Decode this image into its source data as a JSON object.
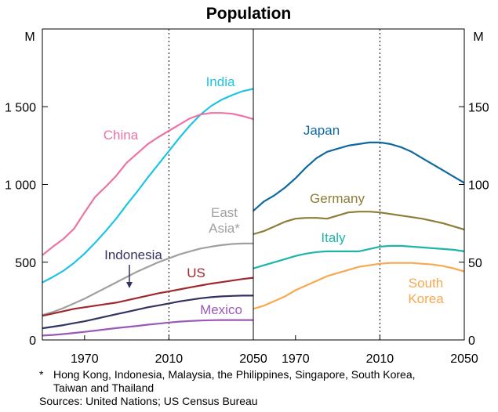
{
  "chart_data": {
    "title": "Population",
    "type": "line",
    "panels": [
      {
        "unit": "M",
        "x_ticks": [
          1970,
          2010,
          2050
        ],
        "x_range": [
          1950,
          2050
        ],
        "y_ticks": [
          "0",
          "500",
          "1 000",
          "1 500"
        ],
        "y_tick_values": [
          0,
          500,
          1000,
          1500
        ],
        "y_range": [
          0,
          2000
        ],
        "vline_at": 2010,
        "series": [
          {
            "name": "India",
            "color": "#1EC3E6",
            "x": [
              1950,
              1955,
              1960,
              1965,
              1970,
              1975,
              1980,
              1985,
              1990,
              1995,
              2000,
              2005,
              2010,
              2015,
              2020,
              2025,
              2030,
              2035,
              2040,
              2045,
              2050
            ],
            "y": [
              370,
              405,
              445,
              495,
              555,
              625,
              700,
              780,
              870,
              955,
              1045,
              1130,
              1215,
              1300,
              1380,
              1450,
              1505,
              1545,
              1575,
              1600,
              1615
            ]
          },
          {
            "name": "China",
            "color": "#EB73A5",
            "x": [
              1950,
              1955,
              1960,
              1965,
              1970,
              1975,
              1980,
              1985,
              1990,
              1995,
              2000,
              2005,
              2010,
              2015,
              2020,
              2025,
              2030,
              2035,
              2040,
              2045,
              2050
            ],
            "y": [
              545,
              600,
              650,
              715,
              820,
              920,
              985,
              1055,
              1140,
              1200,
              1260,
              1305,
              1345,
              1385,
              1425,
              1450,
              1460,
              1460,
              1455,
              1440,
              1420
            ]
          },
          {
            "name": "East Asia*",
            "label_lines": [
              "East",
              "Asia*"
            ],
            "color": "#A0A0A0",
            "x": [
              1950,
              1955,
              1960,
              1965,
              1970,
              1975,
              1980,
              1985,
              1990,
              1995,
              2000,
              2005,
              2010,
              2015,
              2020,
              2025,
              2030,
              2035,
              2040,
              2045,
              2050
            ],
            "y": [
              160,
              180,
              205,
              235,
              265,
              300,
              335,
              370,
              405,
              440,
              470,
              500,
              525,
              550,
              570,
              588,
              600,
              610,
              617,
              620,
              620
            ]
          },
          {
            "name": "Indonesia",
            "color": "#323264",
            "x": [
              1950,
              1955,
              1960,
              1965,
              1970,
              1975,
              1980,
              1985,
              1990,
              1995,
              2000,
              2005,
              2010,
              2015,
              2020,
              2025,
              2030,
              2035,
              2040,
              2045,
              2050
            ],
            "y": [
              75,
              85,
              95,
              108,
              120,
              135,
              150,
              165,
              180,
              195,
              210,
              222,
              235,
              248,
              258,
              268,
              275,
              280,
              283,
              285,
              285
            ]
          },
          {
            "name": "US",
            "color": "#A0282D",
            "x": [
              1950,
              1955,
              1960,
              1965,
              1970,
              1975,
              1980,
              1985,
              1990,
              1995,
              2000,
              2005,
              2010,
              2015,
              2020,
              2025,
              2030,
              2035,
              2040,
              2045,
              2050
            ],
            "y": [
              155,
              170,
              185,
              200,
              210,
              220,
              230,
              240,
              255,
              270,
              285,
              300,
              312,
              325,
              338,
              350,
              362,
              372,
              382,
              392,
              400
            ]
          },
          {
            "name": "Mexico",
            "color": "#9B59B6",
            "x": [
              1950,
              1955,
              1960,
              1965,
              1970,
              1975,
              1980,
              1985,
              1990,
              1995,
              2000,
              2005,
              2010,
              2015,
              2020,
              2025,
              2030,
              2035,
              2040,
              2045,
              2050
            ],
            "y": [
              28,
              32,
              38,
              45,
              52,
              60,
              68,
              76,
              83,
              90,
              98,
              105,
              112,
              118,
              122,
              125,
              127,
              128,
              128,
              128,
              128
            ]
          }
        ]
      },
      {
        "unit": "M",
        "x_ticks": [
          1970,
          2010,
          2050
        ],
        "x_range": [
          1950,
          2050
        ],
        "y_ticks": [
          "0",
          "50",
          "100",
          "150"
        ],
        "y_tick_values": [
          0,
          50,
          100,
          150
        ],
        "y_range": [
          0,
          200
        ],
        "vline_at": 2010,
        "series": [
          {
            "name": "Japan",
            "color": "#0F69A0",
            "x": [
              1950,
              1955,
              1960,
              1965,
              1970,
              1975,
              1980,
              1985,
              1990,
              1995,
              2000,
              2005,
              2010,
              2015,
              2020,
              2025,
              2030,
              2035,
              2040,
              2045,
              2050
            ],
            "y": [
              83,
              89,
              93,
              98,
              104,
              111,
              117,
              121,
              123,
              125,
              126,
              127,
              127,
              126,
              124,
              121,
              117,
              113,
              109,
              105,
              101
            ]
          },
          {
            "name": "Germany",
            "color": "#8C7D37",
            "x": [
              1950,
              1955,
              1960,
              1965,
              1970,
              1975,
              1980,
              1985,
              1990,
              1995,
              2000,
              2005,
              2010,
              2015,
              2020,
              2025,
              2030,
              2035,
              2040,
              2045,
              2050
            ],
            "y": [
              68,
              70,
              73,
              76,
              78,
              78.5,
              78.5,
              78,
              80,
              82,
              82.5,
              82.5,
              82,
              81,
              80,
              79,
              78,
              76.5,
              75,
              73,
              71
            ]
          },
          {
            "name": "Italy",
            "color": "#1EB4AA",
            "x": [
              1950,
              1955,
              1960,
              1965,
              1970,
              1975,
              1980,
              1985,
              1990,
              1995,
              2000,
              2005,
              2010,
              2015,
              2020,
              2025,
              2030,
              2035,
              2040,
              2045,
              2050
            ],
            "y": [
              46,
              48,
              50,
              52,
              54,
              55.5,
              56.5,
              57,
              57,
              57,
              57,
              58.5,
              60,
              60.5,
              60.5,
              60,
              59.5,
              59,
              58.5,
              58,
              57
            ]
          },
          {
            "name": "South Korea",
            "label_lines": [
              "South",
              "Korea"
            ],
            "color": "#F7A850",
            "x": [
              1950,
              1955,
              1960,
              1965,
              1970,
              1975,
              1980,
              1985,
              1990,
              1995,
              2000,
              2005,
              2010,
              2015,
              2020,
              2025,
              2030,
              2035,
              2040,
              2045,
              2050
            ],
            "y": [
              20,
              22,
              25,
              28,
              32,
              35,
              38,
              41,
              43,
              45,
              47,
              48,
              49,
              49.5,
              49.5,
              49.5,
              49,
              48.5,
              47.5,
              46,
              44
            ]
          }
        ]
      }
    ]
  },
  "footnote": {
    "marker": "*",
    "line1": "Hong Kong, Indonesia, Malaysia, the Philippines, Singapore, South Korea,",
    "line2": "Taiwan and Thailand",
    "sources": "Sources: United Nations; US Census Bureau"
  }
}
